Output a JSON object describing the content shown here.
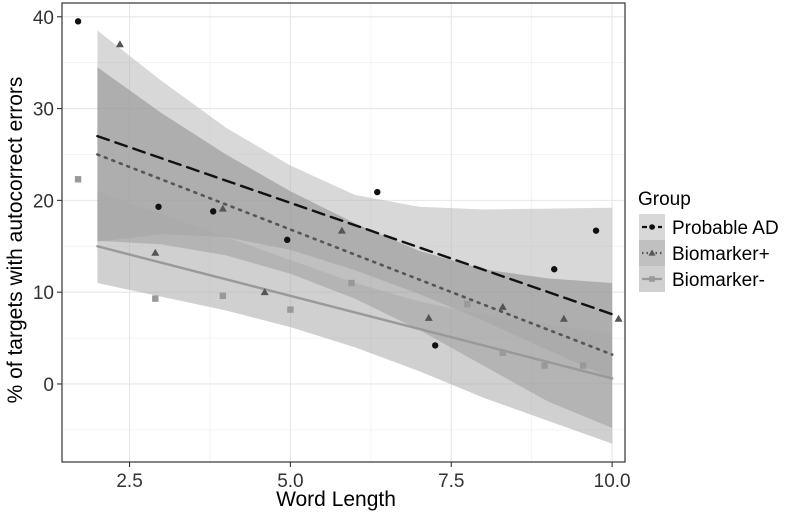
{
  "chart_data": {
    "type": "scatter",
    "xlabel": "Word Length",
    "ylabel": "% of targets with autocorrect errors",
    "xlim": [
      1.45,
      10.2
    ],
    "ylim": [
      -8.5,
      41.5
    ],
    "x_ticks": [
      2.5,
      5.0,
      7.5,
      10.0
    ],
    "x_tick_labels": [
      "2.5",
      "5.0",
      "7.5",
      "10.0"
    ],
    "y_ticks": [
      0,
      10,
      20,
      30,
      40
    ],
    "y_tick_labels": [
      "0",
      "10",
      "20",
      "30",
      "40"
    ],
    "grid": true,
    "legend_title": "Group",
    "legend_position": "right",
    "series": [
      {
        "name": "Probable AD",
        "marker": "circle",
        "line_style": "dashed",
        "color": "#111111",
        "band_color": "#b8b8b8",
        "points": [
          [
            1.7,
            39.5
          ],
          [
            2.95,
            19.3
          ],
          [
            3.8,
            18.8
          ],
          [
            4.95,
            15.7
          ],
          [
            6.35,
            20.9
          ],
          [
            7.25,
            4.2
          ],
          [
            9.1,
            12.5
          ],
          [
            9.75,
            16.7
          ]
        ],
        "fit": {
          "x": [
            2.0,
            10.0
          ],
          "y": [
            27.0,
            7.6
          ]
        },
        "band": {
          "x": [
            2.0,
            3.0,
            4.0,
            5.0,
            6.0,
            7.0,
            8.0,
            9.0,
            10.0
          ],
          "lower": [
            15.5,
            16.3,
            16.0,
            14.6,
            12.4,
            9.8,
            6.9,
            3.7,
            0.6
          ],
          "upper": [
            38.5,
            33.0,
            27.9,
            23.8,
            20.6,
            19.3,
            19.0,
            19.1,
            19.2
          ]
        }
      },
      {
        "name": "Biomarker+",
        "marker": "triangle",
        "line_style": "dotted",
        "color": "#555555",
        "band_color": "#8c8c8c",
        "points": [
          [
            2.35,
            37.0
          ],
          [
            2.9,
            14.3
          ],
          [
            3.95,
            19.1
          ],
          [
            4.6,
            10.0
          ],
          [
            5.8,
            16.7
          ],
          [
            7.15,
            7.2
          ],
          [
            8.3,
            8.4
          ],
          [
            9.25,
            7.1
          ],
          [
            10.1,
            7.1
          ]
        ],
        "fit": {
          "x": [
            2.0,
            10.0
          ],
          "y": [
            25.0,
            3.2
          ]
        },
        "band": {
          "x": [
            2.0,
            3.0,
            4.0,
            5.0,
            6.0,
            7.0,
            8.0,
            9.0,
            10.0
          ],
          "lower": [
            15.6,
            15.2,
            14.0,
            12.0,
            9.3,
            5.9,
            2.0,
            -1.9,
            -4.8
          ],
          "upper": [
            34.5,
            29.5,
            25.0,
            21.0,
            17.5,
            14.5,
            12.5,
            11.5,
            11.0
          ]
        }
      },
      {
        "name": "Biomarker-",
        "marker": "square",
        "line_style": "solid",
        "color": "#999999",
        "band_color": "#a9a9a9",
        "points": [
          [
            1.7,
            22.3
          ],
          [
            2.9,
            9.3
          ],
          [
            3.95,
            9.6
          ],
          [
            5.0,
            8.1
          ],
          [
            5.95,
            11.0
          ],
          [
            7.75,
            8.7
          ],
          [
            8.3,
            3.4
          ],
          [
            8.95,
            2.0
          ],
          [
            9.55,
            2.0
          ]
        ],
        "fit": {
          "x": [
            2.0,
            10.0
          ],
          "y": [
            15.0,
            0.6
          ]
        },
        "band": {
          "x": [
            2.0,
            3.0,
            4.0,
            5.0,
            6.0,
            7.0,
            8.0,
            9.0,
            10.0
          ],
          "lower": [
            11.0,
            9.5,
            8.0,
            6.2,
            4.0,
            1.4,
            -1.5,
            -4.0,
            -6.5
          ],
          "upper": [
            21.0,
            18.5,
            16.0,
            13.5,
            11.0,
            9.0,
            7.5,
            6.5,
            5.5
          ]
        }
      }
    ]
  }
}
